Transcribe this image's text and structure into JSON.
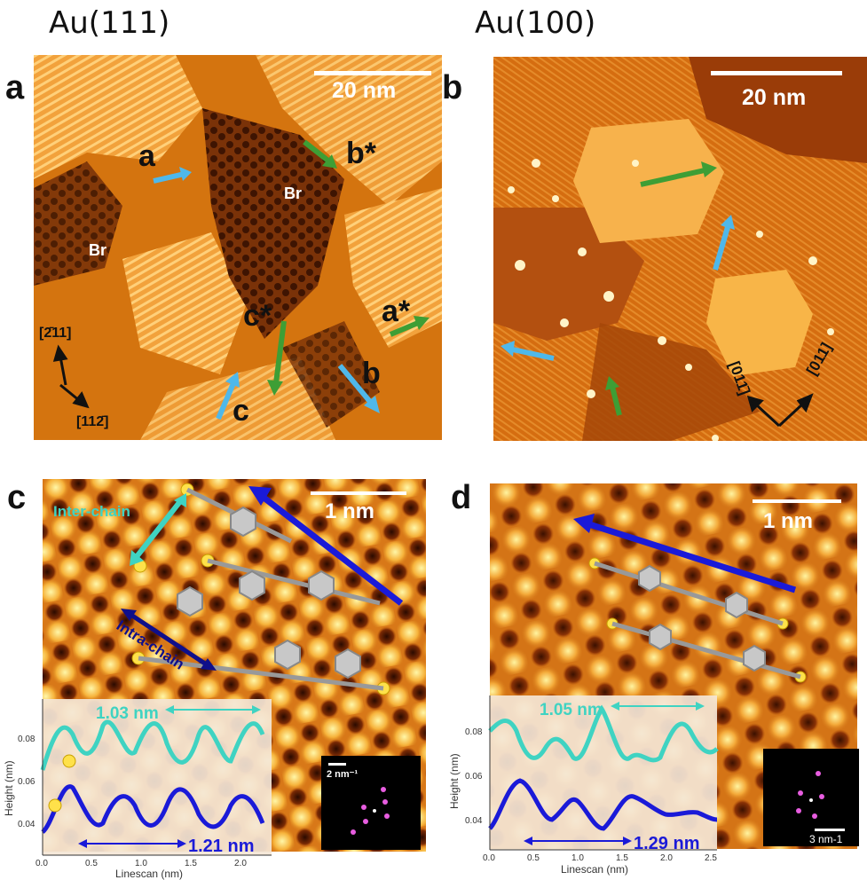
{
  "titles": {
    "left": "Au(111)",
    "right": "Au(100)"
  },
  "panels": {
    "a": {
      "label": "a",
      "scalebar": "20 nm",
      "annotations": {
        "a": "a",
        "b_star": "b*",
        "c_star": "c*",
        "a_star": "a*",
        "b": "b",
        "c": "c",
        "br1": "Br",
        "br2": "Br"
      },
      "axis_up": "[2̄11]",
      "axis_down": "[112̄]"
    },
    "b": {
      "label": "b",
      "scalebar": "20 nm",
      "axis_left": "[011̄]",
      "axis_right": "[011]"
    },
    "c": {
      "label": "c",
      "scalebar": "1 nm",
      "inter_chain": "Inter-chain",
      "intra_chain": "Intra-chain",
      "dist_top": "1.03 nm",
      "dist_bottom": "1.21 nm",
      "fft_scale": "2 nm⁻¹",
      "xlabel": "Linescan (nm)",
      "ylabel": "Height (nm)",
      "yticks": [
        "0.08",
        "0.06",
        "0.04"
      ],
      "xticks": [
        "0.0",
        "0.5",
        "1.0",
        "1.5",
        "2.0"
      ]
    },
    "d": {
      "label": "d",
      "scalebar": "1 nm",
      "dist_top": "1.05 nm",
      "dist_bottom": "1.29 nm",
      "fft_scale": "3 nm-1",
      "xlabel": "Linescan (nm)",
      "ylabel": "Height (nm)",
      "yticks": [
        "0.08",
        "0.06",
        "0.04"
      ],
      "xticks": [
        "0.0",
        "0.5",
        "1.0",
        "1.5",
        "2.0",
        "2.5"
      ]
    }
  },
  "colors": {
    "cyan": "#3fd3c2",
    "blue": "#1a1ad8",
    "green": "#3e9e35",
    "lightblue": "#4fb8ea"
  }
}
